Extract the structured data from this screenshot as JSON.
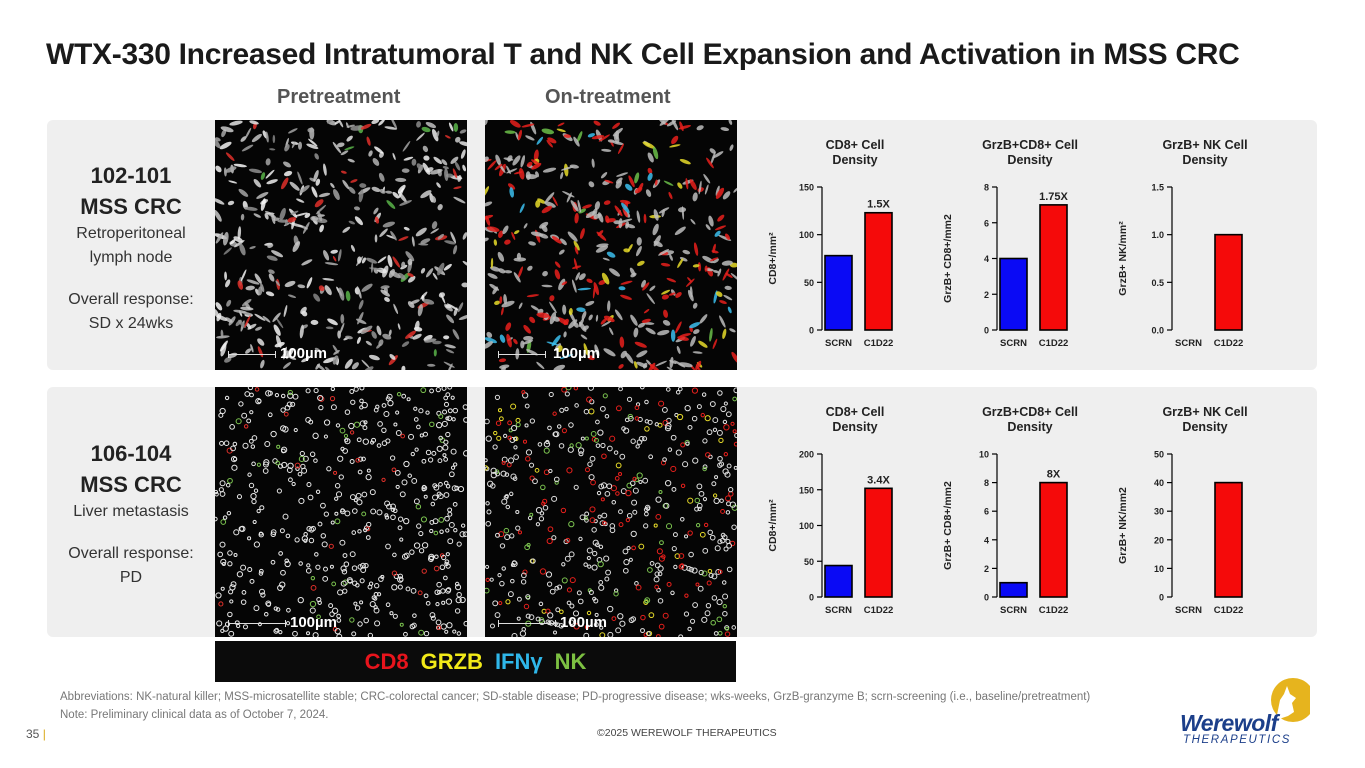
{
  "title": "WTX-330 Increased Intratumoral T and NK Cell Expansion and Activation in MSS CRC",
  "columns": {
    "pre": "Pretreatment",
    "on": "On-treatment"
  },
  "patients": [
    {
      "id": "102-101",
      "type": "MSS CRC",
      "site_line1": "Retroperitoneal",
      "site_line2": "lymph node",
      "resp_line1": "Overall response:",
      "resp_line2": "SD x 24wks"
    },
    {
      "id": "106-104",
      "type": "MSS CRC",
      "site_line1": "Liver metastasis",
      "site_line2": "",
      "resp_line1": "Overall response:",
      "resp_line2": "PD"
    }
  ],
  "scale_label": "100µm",
  "legend": [
    {
      "label": "CD8",
      "color": "#e8141c"
    },
    {
      "label": "GRZB",
      "color": "#f2ea18"
    },
    {
      "label": "IFNγ",
      "color": "#2fb7ea"
    },
    {
      "label": "NK",
      "color": "#7dc142"
    }
  ],
  "chart_data": [
    {
      "type": "bar",
      "title_line1": "CD8+ Cell",
      "title_line2": "Density",
      "ylabel": "CD8+/mm²",
      "categories": [
        "SCRN",
        "C1D22"
      ],
      "values": [
        78,
        123
      ],
      "ylim": [
        0,
        150
      ],
      "ticks": [
        "0",
        "50",
        "100",
        "150"
      ],
      "annotation": "1.5X",
      "colors": [
        "#0a0af5",
        "#f50a0a"
      ]
    },
    {
      "type": "bar",
      "title_line1": "GrzB+CD8+ Cell",
      "title_line2": "Density",
      "ylabel": "GrzB+ CD8+/mm2",
      "categories": [
        "SCRN",
        "C1D22"
      ],
      "values": [
        4,
        7
      ],
      "ylim": [
        0,
        8
      ],
      "ticks": [
        "0",
        "2",
        "4",
        "6",
        "8"
      ],
      "annotation": "1.75X",
      "colors": [
        "#0a0af5",
        "#f50a0a"
      ]
    },
    {
      "type": "bar",
      "title_line1": "GrzB+ NK Cell",
      "title_line2": "Density",
      "ylabel": "GrzB+ NK/mm²",
      "categories": [
        "SCRN",
        "C1D22"
      ],
      "values": [
        0,
        1.0
      ],
      "ylim": [
        0,
        1.5
      ],
      "ticks": [
        "0.0",
        "0.5",
        "1.0",
        "1.5"
      ],
      "annotation": "",
      "colors": [
        "#0a0af5",
        "#f50a0a"
      ]
    },
    {
      "type": "bar",
      "title_line1": "CD8+ Cell",
      "title_line2": "Density",
      "ylabel": "CD8+/mm²",
      "categories": [
        "SCRN",
        "C1D22"
      ],
      "values": [
        44,
        152
      ],
      "ylim": [
        0,
        200
      ],
      "ticks": [
        "0",
        "50",
        "100",
        "150",
        "200"
      ],
      "annotation": "3.4X",
      "colors": [
        "#0a0af5",
        "#f50a0a"
      ]
    },
    {
      "type": "bar",
      "title_line1": "GrzB+CD8+ Cell",
      "title_line2": "Density",
      "ylabel": "GrzB+ CD8+/mm2",
      "categories": [
        "SCRN",
        "C1D22"
      ],
      "values": [
        1,
        8
      ],
      "ylim": [
        0,
        10
      ],
      "ticks": [
        "0",
        "2",
        "4",
        "6",
        "8",
        "10"
      ],
      "annotation": "8X",
      "colors": [
        "#0a0af5",
        "#f50a0a"
      ]
    },
    {
      "type": "bar",
      "title_line1": "GrzB+ NK Cell",
      "title_line2": "Density",
      "ylabel": "GrzB+ NK/mm2",
      "categories": [
        "SCRN",
        "C1D22"
      ],
      "values": [
        0,
        40
      ],
      "ylim": [
        0,
        50
      ],
      "ticks": [
        "0",
        "10",
        "20",
        "30",
        "40",
        "50"
      ],
      "annotation": "",
      "colors": [
        "#0a0af5",
        "#f50a0a"
      ]
    }
  ],
  "footer": {
    "abbrev": "Abbreviations: NK-natural killer; MSS-microsatellite stable; CRC-colorectal cancer; SD-stable disease; PD-progressive disease; wks-weeks, GrzB-granzyme B; scrn-screening (i.e., baseline/pretreatment)",
    "note": "Note: Preliminary clinical data as of October 7, 2024.",
    "page": "35",
    "copyright": "©2025 WEREWOLF THERAPEUTICS"
  },
  "logo": {
    "word": "Werewolf",
    "sub": "THERAPEUTICS"
  },
  "brand_colors": {
    "accent": "#d8a91a",
    "logo_blue": "#1c3f8a"
  }
}
